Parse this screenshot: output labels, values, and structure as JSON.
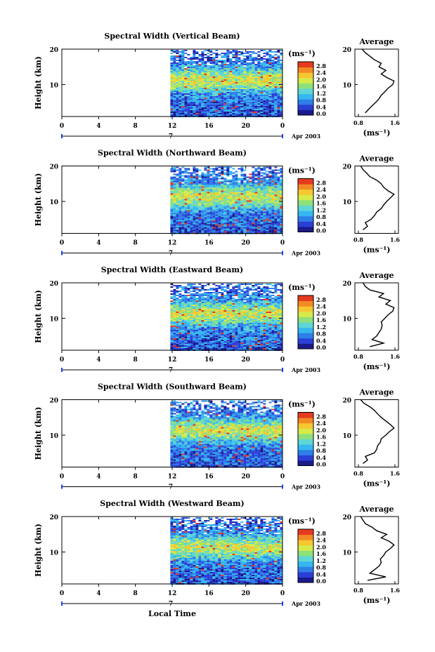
{
  "figure": {
    "x_axis_label": "Local Time",
    "date_label": "Apr 2003",
    "day_label": "7",
    "panel_y_label": "Height (km)",
    "colorbar_unit_label": "(ms⁻¹)",
    "avg_title": "Average",
    "avg_x_label": "(ms⁻¹)"
  },
  "colorbar": {
    "ticks": [
      "2.8",
      "2.4",
      "2.0",
      "1.6",
      "1.2",
      "0.8",
      "0.4",
      "0.0"
    ],
    "colors": [
      "#1a1a8c",
      "#2b3fd6",
      "#2e7fe8",
      "#35b8f0",
      "#5fd6d6",
      "#8ee07a",
      "#d6ea4a",
      "#f5c730",
      "#f28a24",
      "#e63a1e"
    ]
  },
  "chart_data": [
    {
      "type": "heatmap",
      "title": "Spectral Width (Vertical Beam)",
      "xlabel": "Local Time",
      "ylabel": "Height (km)",
      "xlim": [
        0,
        24
      ],
      "ylim": [
        1,
        20
      ],
      "xticks": [
        "0",
        "4",
        "8",
        "12",
        "16",
        "20",
        "0"
      ],
      "yticks": [
        "10",
        "20"
      ],
      "data_start_hour": 11.8,
      "colorbar_label": "(ms⁻¹)",
      "clim": [
        0.0,
        2.8
      ],
      "average_profile": {
        "title": "Average",
        "xlabel": "(ms⁻¹)",
        "xlim": [
          0.8,
          1.6
        ],
        "xticks": [
          "0.8",
          "1.6"
        ],
        "ylim": [
          1,
          20
        ],
        "yticks": [
          "10",
          "20"
        ],
        "height_km": [
          2,
          3,
          4,
          5,
          6,
          7,
          8,
          9,
          10,
          11,
          12,
          13,
          14,
          15,
          16,
          17,
          18,
          19,
          20
        ],
        "values": [
          0.95,
          1.02,
          1.1,
          1.18,
          1.25,
          1.3,
          1.38,
          1.45,
          1.55,
          1.58,
          1.42,
          1.3,
          1.4,
          1.25,
          1.3,
          1.15,
          1.05,
          0.95,
          0.88
        ]
      }
    },
    {
      "type": "heatmap",
      "title": "Spectral Width (Northward Beam)",
      "xlabel": "Local Time",
      "ylabel": "Height (km)",
      "xlim": [
        0,
        24
      ],
      "ylim": [
        1,
        20
      ],
      "xticks": [
        "0",
        "4",
        "8",
        "12",
        "16",
        "20",
        "0"
      ],
      "yticks": [
        "10",
        "20"
      ],
      "data_start_hour": 11.8,
      "colorbar_label": "(ms⁻¹)",
      "clim": [
        0.0,
        2.8
      ],
      "average_profile": {
        "title": "Average",
        "xlabel": "(ms⁻¹)",
        "xlim": [
          0.8,
          1.6
        ],
        "xticks": [
          "0.8",
          "1.6"
        ],
        "ylim": [
          1,
          20
        ],
        "yticks": [
          "10",
          "20"
        ],
        "height_km": [
          2,
          3,
          4,
          5,
          6,
          7,
          8,
          9,
          10,
          11,
          12,
          13,
          14,
          15,
          16,
          17,
          18,
          19,
          20
        ],
        "values": [
          0.9,
          1.0,
          0.95,
          1.08,
          1.15,
          1.2,
          1.3,
          1.35,
          1.42,
          1.5,
          1.58,
          1.45,
          1.35,
          1.3,
          1.2,
          1.05,
          0.98,
          0.9,
          0.85
        ]
      }
    },
    {
      "type": "heatmap",
      "title": "Spectral Width (Eastward Beam)",
      "xlabel": "Local Time",
      "ylabel": "Height (km)",
      "xlim": [
        0,
        24
      ],
      "ylim": [
        1,
        20
      ],
      "xticks": [
        "0",
        "4",
        "8",
        "12",
        "16",
        "20",
        "0"
      ],
      "yticks": [
        "10",
        "20"
      ],
      "data_start_hour": 11.8,
      "colorbar_label": "(ms⁻¹)",
      "clim": [
        0.0,
        2.8
      ],
      "average_profile": {
        "title": "Average",
        "xlabel": "(ms⁻¹)",
        "xlim": [
          0.8,
          1.6
        ],
        "xticks": [
          "0.8",
          "1.6"
        ],
        "ylim": [
          1,
          20
        ],
        "yticks": [
          "10",
          "20"
        ],
        "height_km": [
          2,
          3,
          4,
          5,
          6,
          7,
          8,
          9,
          10,
          11,
          12,
          13,
          14,
          15,
          16,
          17,
          18,
          19,
          20
        ],
        "values": [
          1.05,
          1.35,
          1.1,
          1.2,
          1.25,
          1.3,
          1.32,
          1.3,
          1.38,
          1.45,
          1.55,
          1.58,
          1.4,
          1.5,
          1.25,
          1.35,
          1.05,
          0.95,
          0.9
        ]
      }
    },
    {
      "type": "heatmap",
      "title": "Spectral Width (Southward Beam)",
      "xlabel": "Local Time",
      "ylabel": "Height (km)",
      "xlim": [
        0,
        24
      ],
      "ylim": [
        1,
        20
      ],
      "xticks": [
        "0",
        "4",
        "8",
        "12",
        "16",
        "20",
        "0"
      ],
      "yticks": [
        "10",
        "20"
      ],
      "data_start_hour": 11.8,
      "colorbar_label": "(ms⁻¹)",
      "clim": [
        0.0,
        2.8
      ],
      "average_profile": {
        "title": "Average",
        "xlabel": "(ms⁻¹)",
        "xlim": [
          0.8,
          1.6
        ],
        "xticks": [
          "0.8",
          "1.6"
        ],
        "ylim": [
          1,
          20
        ],
        "yticks": [
          "10",
          "20"
        ],
        "height_km": [
          2,
          3,
          4,
          5,
          6,
          7,
          8,
          9,
          10,
          11,
          12,
          13,
          14,
          15,
          16,
          17,
          18,
          19,
          20
        ],
        "values": [
          0.9,
          1.0,
          0.95,
          1.15,
          1.2,
          1.22,
          1.28,
          1.3,
          1.4,
          1.48,
          1.58,
          1.5,
          1.4,
          1.3,
          1.22,
          1.15,
          1.05,
          0.92,
          0.85
        ]
      }
    },
    {
      "type": "heatmap",
      "title": "Spectral Width (Westward Beam)",
      "xlabel": "Local Time",
      "ylabel": "Height (km)",
      "xlim": [
        0,
        24
      ],
      "ylim": [
        1,
        20
      ],
      "xticks": [
        "0",
        "4",
        "8",
        "12",
        "16",
        "20",
        "0"
      ],
      "yticks": [
        "10",
        "20"
      ],
      "data_start_hour": 11.8,
      "colorbar_label": "(ms⁻¹)",
      "clim": [
        0.0,
        2.8
      ],
      "average_profile": {
        "title": "Average",
        "xlabel": "(ms⁻¹)",
        "xlim": [
          0.8,
          1.6
        ],
        "xticks": [
          "0.8",
          "1.6"
        ],
        "ylim": [
          1,
          20
        ],
        "yticks": [
          "10",
          "20"
        ],
        "height_km": [
          2,
          3,
          4,
          5,
          6,
          7,
          8,
          9,
          10,
          11,
          12,
          13,
          14,
          15,
          16,
          17,
          18,
          19,
          20
        ],
        "values": [
          1.0,
          1.4,
          1.05,
          1.15,
          1.25,
          1.3,
          1.28,
          1.35,
          1.4,
          1.5,
          1.58,
          1.48,
          1.3,
          1.42,
          1.2,
          1.1,
          0.95,
          0.9,
          0.85
        ]
      }
    }
  ]
}
